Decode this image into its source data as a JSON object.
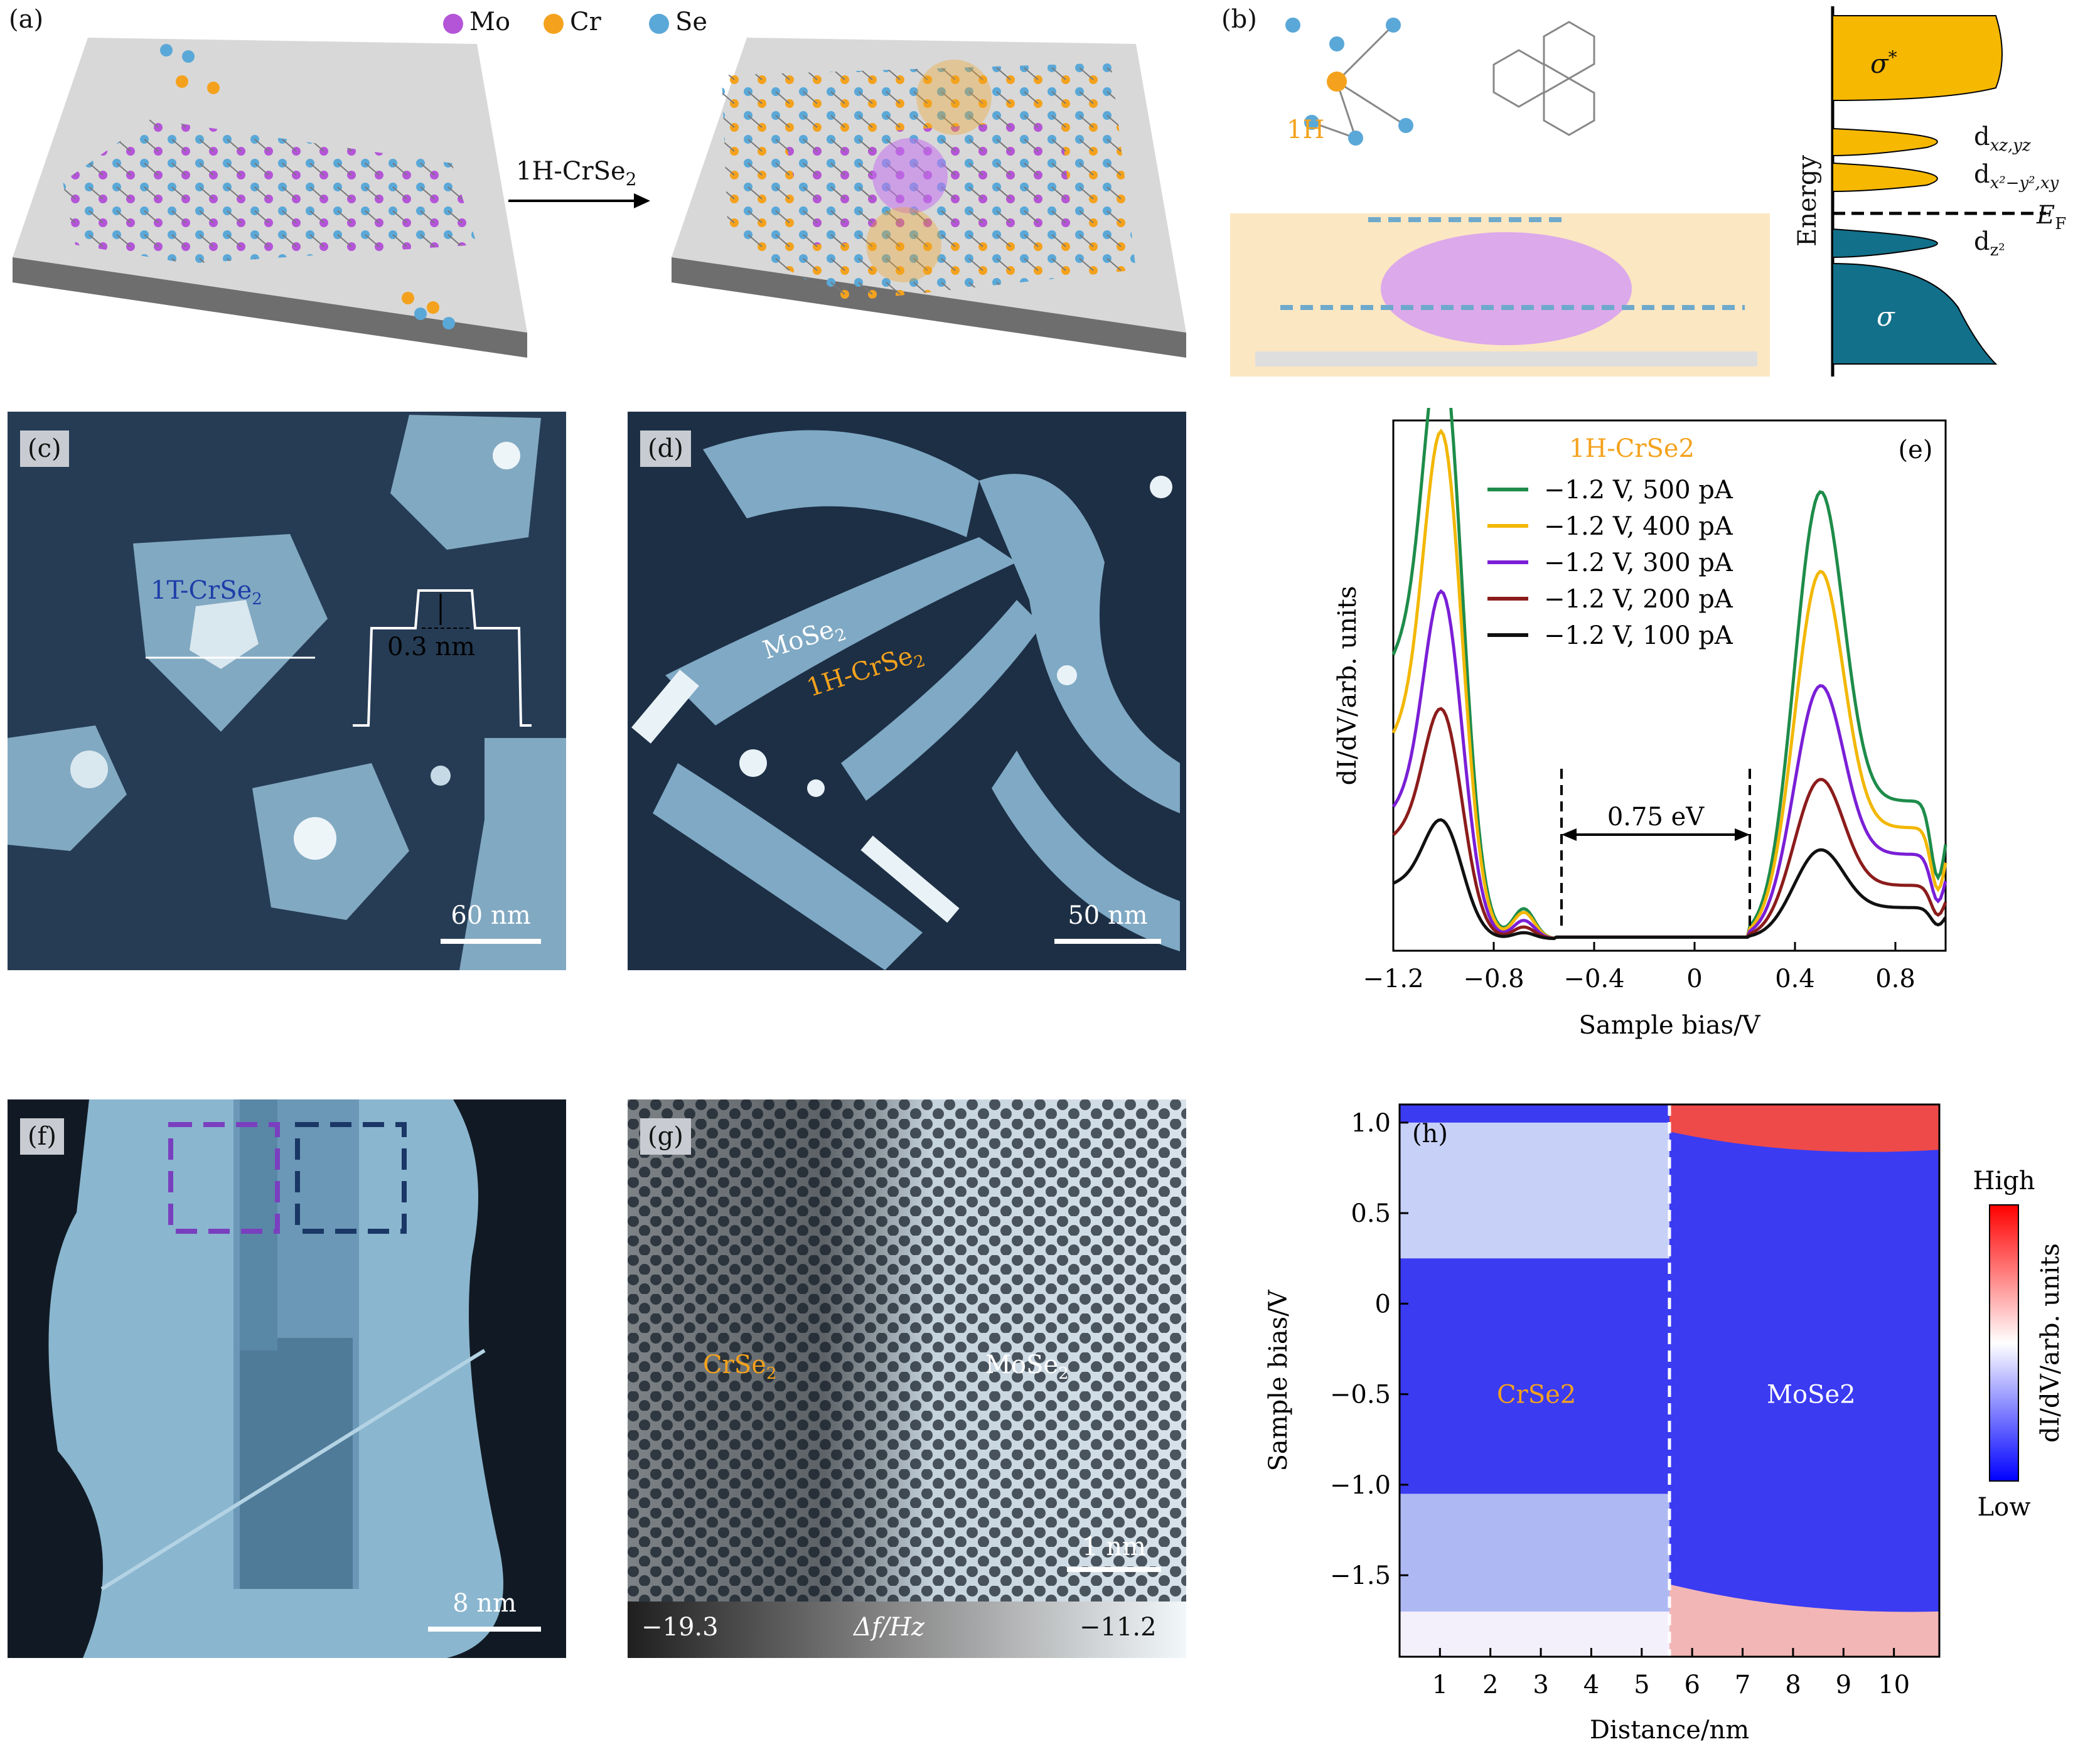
{
  "panels": {
    "a": {
      "label": "(a)",
      "legend": [
        {
          "name": "Mo",
          "color": "#b455d8"
        },
        {
          "name": "Cr",
          "color": "#f4a21d"
        },
        {
          "name": "Se",
          "color": "#5aa8d8"
        }
      ],
      "arrow_label": "1H-CrSe",
      "arrow_sub": "2"
    },
    "b": {
      "label": "(b)",
      "phase": "1H",
      "energy_axis": "Energy",
      "levels": [
        {
          "name": "σ*",
          "sup": "*",
          "base": "σ"
        },
        {
          "name": "d",
          "sub": "xz,yz"
        },
        {
          "name": "d",
          "sub": "x²−y²,xy"
        },
        {
          "name": "E",
          "sub": "F"
        },
        {
          "name": "d",
          "sub": "z²"
        },
        {
          "name": "σ"
        }
      ]
    },
    "c": {
      "label": "(c)",
      "material": "1T-CrSe",
      "material_sub": "2",
      "height": "0.3 nm",
      "scale": "60 nm"
    },
    "d": {
      "label": "(d)",
      "material1": "MoSe",
      "material1_sub": "2",
      "material2": "1H-CrSe",
      "material2_sub": "2",
      "scale": "50 nm"
    },
    "f": {
      "label": "(f)",
      "scale": "8 nm"
    },
    "g": {
      "label": "(g)",
      "left": "CrSe",
      "left_sub": "2",
      "right": "MoSe",
      "right_sub": "2",
      "scale": "1 nm",
      "cbar_min": "−19.3",
      "cbar_label": "Δf/Hz",
      "cbar_max": "−11.2"
    },
    "h": {
      "label": "(h)",
      "left": "CrSe",
      "left_sub": "2",
      "right": "MoSe",
      "right_sub": "2",
      "high": "High",
      "low": "Low"
    }
  },
  "chart_data": [
    {
      "id": "e",
      "type": "line",
      "label": "(e)",
      "title": "1H-CrSe2",
      "xlabel": "Sample bias/V",
      "ylabel": "dI/dV/arb. units",
      "xlim": [
        -1.2,
        1.0
      ],
      "xticks": [
        "−1.2",
        "−0.8",
        "−0.4",
        "0",
        "0.4",
        "0.8"
      ],
      "xtick_values": [
        -1.2,
        -0.8,
        -0.4,
        0,
        0.4,
        0.8
      ],
      "annotation": "0.75 eV",
      "gap": [
        -0.53,
        0.22
      ],
      "series": [
        {
          "name": "−1.2 V, 500 pA",
          "color": "#1e8c4a",
          "peak_neg": 1.0,
          "peak_pos": 0.64,
          "start": 0.77,
          "end": 0.31
        },
        {
          "name": "−1.2 V, 400 pA",
          "color": "#f2b705",
          "peak_neg": 0.88,
          "peak_pos": 0.53,
          "start": 0.55,
          "end": 0.25
        },
        {
          "name": "−1.2 V, 300 pA",
          "color": "#7a1fd6",
          "peak_neg": 0.61,
          "peak_pos": 0.35,
          "start": 0.35,
          "end": 0.19
        },
        {
          "name": "−1.2 V, 200 pA",
          "color": "#8c1c1c",
          "peak_neg": 0.39,
          "peak_pos": 0.22,
          "start": 0.28,
          "end": 0.12
        },
        {
          "name": "−1.2 V, 100 pA",
          "color": "#111111",
          "peak_neg": 0.2,
          "peak_pos": 0.12,
          "start": 0.15,
          "end": 0.07
        }
      ]
    },
    {
      "id": "h",
      "type": "heatmap",
      "xlabel": "Distance/nm",
      "ylabel": "Sample bias/V",
      "xticks": [
        "1",
        "2",
        "3",
        "4",
        "5",
        "6",
        "7",
        "8",
        "9",
        "10"
      ],
      "xtick_values": [
        1,
        2,
        3,
        4,
        5,
        6,
        7,
        8,
        9,
        10
      ],
      "yticks": [
        "1.0",
        "0.5",
        "0",
        "−0.5",
        "−1.0",
        "−1.5"
      ],
      "ytick_values": [
        1.0,
        0.5,
        0,
        -0.5,
        -1.0,
        -1.5
      ],
      "xlim": [
        0.2,
        10.9
      ],
      "ylim": [
        -1.95,
        1.1
      ],
      "boundary": 5.55
    }
  ]
}
